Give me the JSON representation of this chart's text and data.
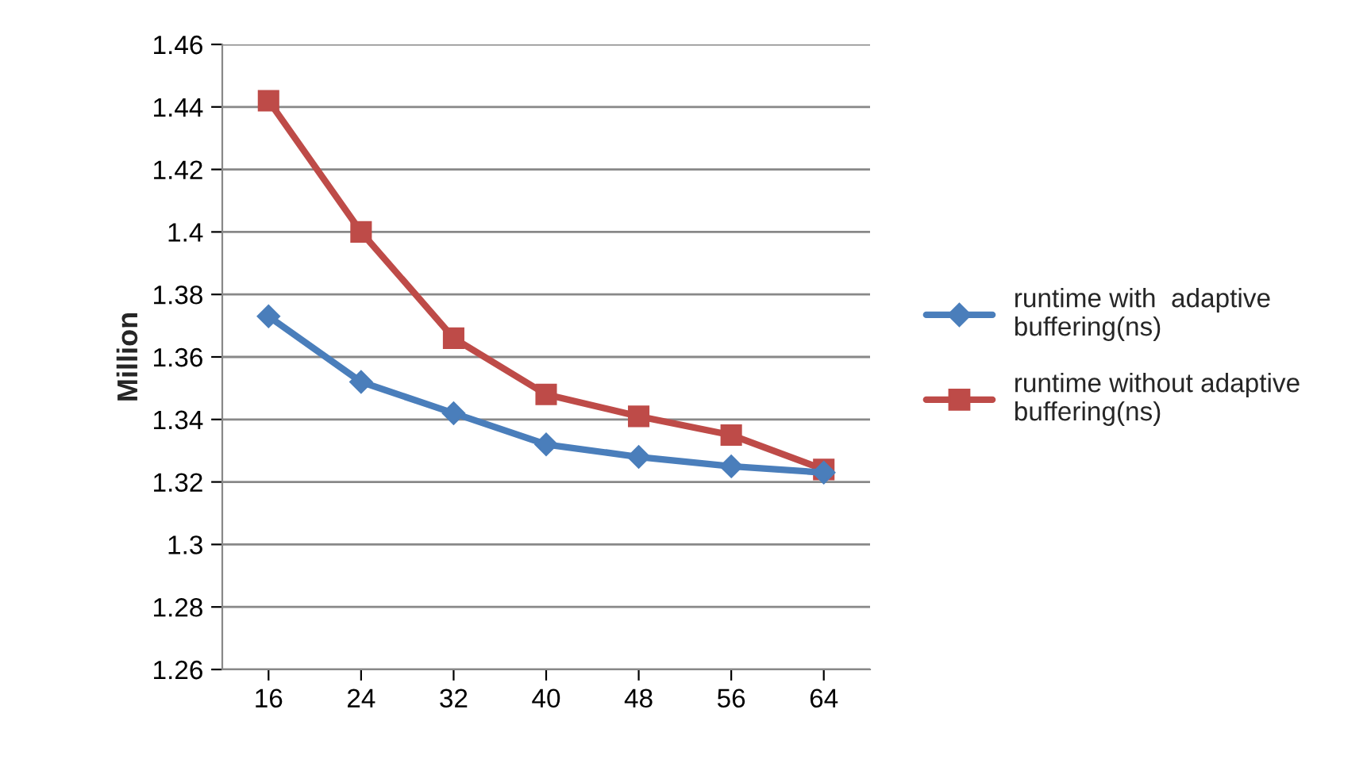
{
  "chart_data": {
    "type": "line",
    "ylabel": "Million",
    "categories": [
      "16",
      "24",
      "32",
      "40",
      "48",
      "56",
      "64"
    ],
    "series": [
      {
        "name": "runtime with  adaptive buffering(ns)",
        "color": "#4a7ebb",
        "marker": "diamond",
        "values": [
          1.373,
          1.352,
          1.342,
          1.332,
          1.328,
          1.325,
          1.323
        ]
      },
      {
        "name": "runtime without adaptive buffering(ns)",
        "color": "#be4b48",
        "marker": "square",
        "values": [
          1.442,
          1.4,
          1.366,
          1.348,
          1.341,
          1.335,
          1.324
        ]
      }
    ],
    "ylim": [
      1.26,
      1.46
    ],
    "yticks": [
      {
        "value": 1.26,
        "label": "1.26"
      },
      {
        "value": 1.28,
        "label": "1.28"
      },
      {
        "value": 1.3,
        "label": "1.3"
      },
      {
        "value": 1.32,
        "label": "1.32"
      },
      {
        "value": 1.34,
        "label": "1.34"
      },
      {
        "value": 1.36,
        "label": "1.36"
      },
      {
        "value": 1.38,
        "label": "1.38"
      },
      {
        "value": 1.4,
        "label": "1.4"
      },
      {
        "value": 1.42,
        "label": "1.42"
      },
      {
        "value": 1.44,
        "label": "1.44"
      },
      {
        "value": 1.46,
        "label": "1.46"
      }
    ],
    "grid": "y",
    "legend": "right",
    "line_style": "solid"
  }
}
